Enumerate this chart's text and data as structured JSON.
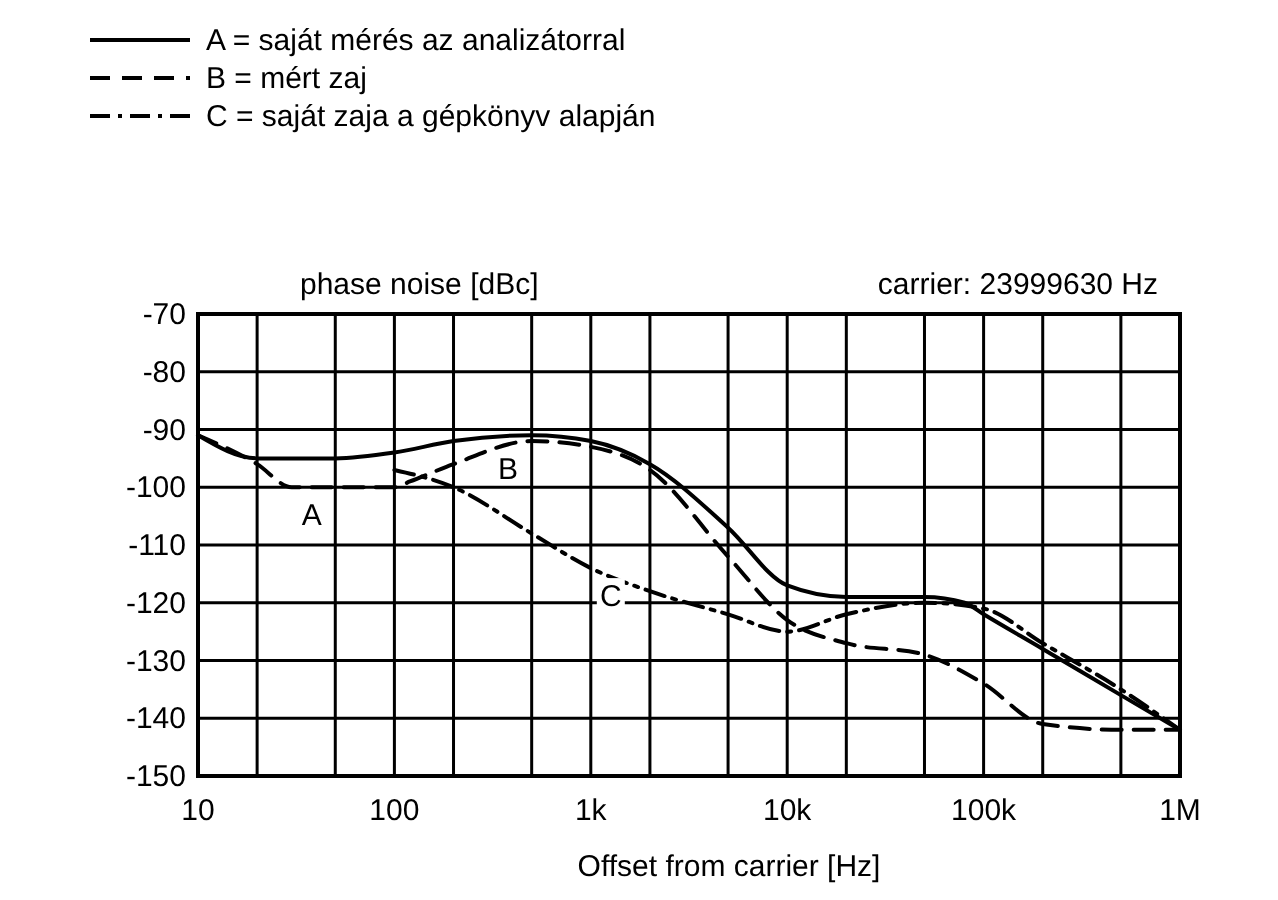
{
  "chart_data": {
    "type": "line",
    "ylabel": "phase noise [dBc]",
    "xlabel": "Offset from carrier   [Hz]",
    "log": "x",
    "grid": true,
    "legend": "top left",
    "xlim": [
      10,
      1000000
    ],
    "ylim": [
      -150,
      -70
    ],
    "xticks": [
      10,
      {
        "value": 20,
        "label": null
      },
      {
        "value": 50,
        "label": null
      },
      100,
      {
        "value": 200,
        "label": null
      },
      {
        "value": 500,
        "label": null
      },
      {
        "value": 1000,
        "label": "1k"
      },
      {
        "value": 2000,
        "label": null
      },
      {
        "value": 5000,
        "label": null
      },
      {
        "value": 10000,
        "label": "10k"
      },
      {
        "value": 20000,
        "label": null
      },
      {
        "value": 50000,
        "label": null
      },
      {
        "value": 100000,
        "label": "100k"
      },
      {
        "value": 200000,
        "label": null
      },
      {
        "value": 500000,
        "label": null
      },
      {
        "value": 1000000,
        "label": "1M"
      }
    ],
    "yticks": [
      -70,
      -80,
      -90,
      -100,
      -110,
      -120,
      -130,
      -140,
      -150
    ],
    "series": [
      {
        "name": "A = saját mérés az analizátorral",
        "color": "#000000",
        "line_style": "solid",
        "x": [
          10,
          20,
          50,
          100,
          200,
          500,
          1000,
          2000,
          5000,
          10000,
          20000,
          50000,
          80000,
          100000,
          200000,
          500000,
          1000000
        ],
        "values": [
          -91,
          -95,
          -95,
          -94,
          -92,
          -91,
          -92,
          -96,
          -107,
          -117,
          -119,
          -119,
          -120,
          -122,
          -128,
          -136,
          -142
        ]
      },
      {
        "name": "B = mért zaj",
        "color": "#000000",
        "line_style": "dashed",
        "x": [
          10,
          20,
          30,
          100,
          120,
          200,
          500,
          1000,
          2000,
          5000,
          10000,
          20000,
          50000,
          100000,
          200000,
          500000,
          1000000
        ],
        "values": [
          -91,
          -96,
          -100,
          -100,
          -99,
          -96,
          -92,
          -93,
          -97,
          -112,
          -123,
          -127,
          -129,
          -134,
          -141,
          -142,
          -142
        ]
      },
      {
        "name": "C = saját zaja a gépkönyv alapján",
        "color": "#000000",
        "line_style": "dashdot",
        "x": [
          100,
          200,
          500,
          1000,
          2000,
          5000,
          10000,
          20000,
          50000,
          100000,
          200000,
          500000,
          1000000
        ],
        "values": [
          -97,
          -100,
          -108,
          -114,
          -118,
          -122,
          -125,
          -122,
          -120,
          -121,
          -127,
          -135,
          -142
        ]
      }
    ],
    "annotations": [
      {
        "text": "A",
        "x": 30,
        "y": -100
      },
      {
        "text": "B",
        "x": 300,
        "y": -92
      },
      {
        "text": "C",
        "x": 1000,
        "y": -114
      },
      "carrier: 23999630 Hz"
    ]
  }
}
